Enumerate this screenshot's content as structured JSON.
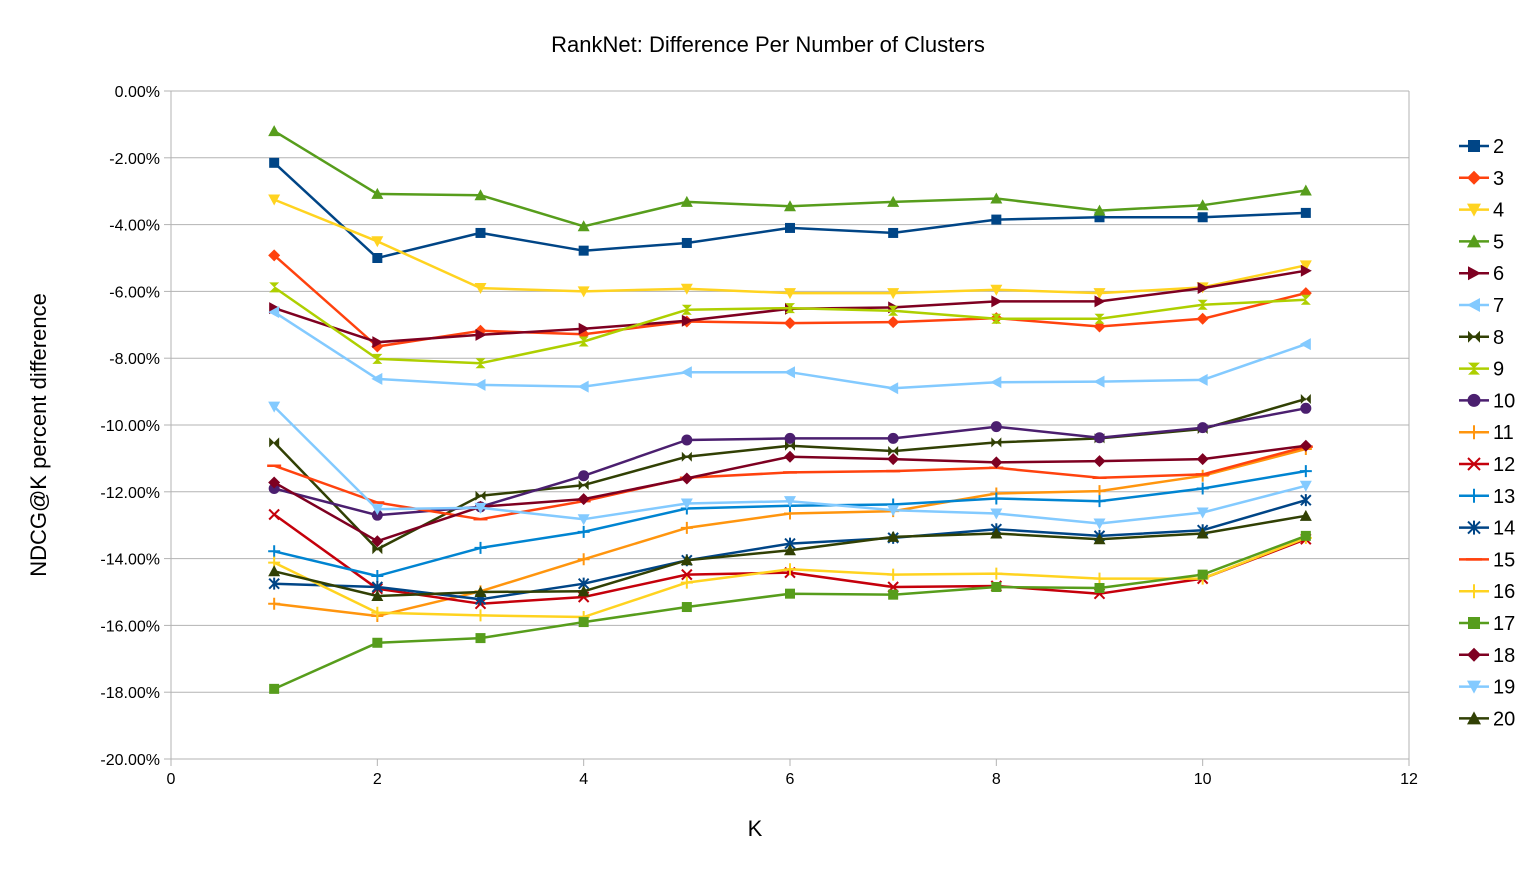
{
  "chart_data": {
    "type": "line",
    "title": "RankNet: Difference Per Number of Clusters",
    "xlabel": "K",
    "ylabel": "NDCG@K percent difference",
    "xlim": [
      0,
      12
    ],
    "ylim": [
      -20,
      0
    ],
    "x_ticks": [
      "0",
      "2",
      "4",
      "6",
      "8",
      "10",
      "12"
    ],
    "y_ticks": [
      "0.00%",
      "-2.00%",
      "-4.00%",
      "-6.00%",
      "-8.00%",
      "-10.00%",
      "-12.00%",
      "-14.00%",
      "-16.00%",
      "-18.00%",
      "-20.00%"
    ],
    "grid": "horizontal",
    "legend_position": "right",
    "x": [
      1,
      2,
      3,
      4,
      5,
      6,
      7,
      8,
      9,
      10,
      11
    ],
    "series": [
      {
        "name": "2",
        "color": "#004586",
        "marker": "square",
        "values": [
          -2.15,
          -5.0,
          -4.25,
          -4.78,
          -4.55,
          -4.1,
          -4.25,
          -3.85,
          -3.78,
          -3.78,
          -3.65
        ]
      },
      {
        "name": "3",
        "color": "#ff420e",
        "marker": "diamond",
        "values": [
          -4.92,
          -7.65,
          -7.18,
          -7.28,
          -6.9,
          -6.95,
          -6.92,
          -6.8,
          -7.05,
          -6.82,
          -6.05
        ]
      },
      {
        "name": "4",
        "color": "#ffd320",
        "marker": "triangle-down",
        "values": [
          -3.25,
          -4.5,
          -5.9,
          -6.0,
          -5.92,
          -6.05,
          -6.05,
          -5.95,
          -6.05,
          -5.88,
          -5.22
        ]
      },
      {
        "name": "5",
        "color": "#579d1c",
        "marker": "triangle-up",
        "values": [
          -1.2,
          -3.08,
          -3.12,
          -4.05,
          -3.32,
          -3.45,
          -3.32,
          -3.22,
          -3.58,
          -3.42,
          -2.98
        ]
      },
      {
        "name": "6",
        "color": "#7e0021",
        "marker": "triangle-right",
        "values": [
          -6.5,
          -7.52,
          -7.3,
          -7.12,
          -6.88,
          -6.52,
          -6.48,
          -6.3,
          -6.3,
          -5.9,
          -5.38
        ]
      },
      {
        "name": "7",
        "color": "#83caff",
        "marker": "triangle-left",
        "values": [
          -6.62,
          -8.62,
          -8.8,
          -8.85,
          -8.42,
          -8.42,
          -8.9,
          -8.72,
          -8.7,
          -8.65,
          -7.58
        ]
      },
      {
        "name": "8",
        "color": "#314004",
        "marker": "bowtie",
        "values": [
          -10.52,
          -13.72,
          -12.12,
          -11.8,
          -10.95,
          -10.62,
          -10.78,
          -10.52,
          -10.4,
          -10.12,
          -9.22
        ]
      },
      {
        "name": "9",
        "color": "#aecf00",
        "marker": "hourglass",
        "values": [
          -5.88,
          -8.02,
          -8.15,
          -7.5,
          -6.55,
          -6.5,
          -6.58,
          -6.82,
          -6.82,
          -6.4,
          -6.25
        ]
      },
      {
        "name": "10",
        "color": "#4b1f6f",
        "marker": "circle",
        "values": [
          -11.9,
          -12.7,
          -12.45,
          -11.52,
          -10.45,
          -10.4,
          -10.4,
          -10.05,
          -10.38,
          -10.08,
          -9.5
        ]
      },
      {
        "name": "11",
        "color": "#ff950e",
        "marker": "plus",
        "values": [
          -15.35,
          -15.72,
          -14.98,
          -14.02,
          -13.08,
          -12.65,
          -12.58,
          -12.05,
          -11.98,
          -11.52,
          -10.72
        ]
      },
      {
        "name": "12",
        "color": "#c5000b",
        "marker": "x",
        "values": [
          -12.68,
          -14.9,
          -15.35,
          -15.15,
          -14.48,
          -14.42,
          -14.85,
          -14.82,
          -15.05,
          -14.6,
          -13.42
        ]
      },
      {
        "name": "13",
        "color": "#0084d1",
        "marker": "plus",
        "values": [
          -13.78,
          -14.52,
          -13.68,
          -13.2,
          -12.5,
          -12.42,
          -12.38,
          -12.2,
          -12.28,
          -11.9,
          -11.38
        ]
      },
      {
        "name": "14",
        "color": "#004586",
        "marker": "asterisk",
        "values": [
          -14.75,
          -14.85,
          -15.22,
          -14.75,
          -14.05,
          -13.55,
          -13.38,
          -13.12,
          -13.32,
          -13.15,
          -12.25
        ]
      },
      {
        "name": "15",
        "color": "#ff420e",
        "marker": "dash",
        "values": [
          -11.22,
          -12.32,
          -12.82,
          -12.28,
          -11.58,
          -11.42,
          -11.38,
          -11.28,
          -11.58,
          -11.48,
          -10.65
        ]
      },
      {
        "name": "16",
        "color": "#ffd320",
        "marker": "plus",
        "values": [
          -14.12,
          -15.62,
          -15.7,
          -15.75,
          -14.72,
          -14.32,
          -14.48,
          -14.45,
          -14.6,
          -14.6,
          -13.38
        ]
      },
      {
        "name": "17",
        "color": "#579d1c",
        "marker": "square",
        "values": [
          -17.9,
          -16.52,
          -16.38,
          -15.9,
          -15.45,
          -15.05,
          -15.08,
          -14.85,
          -14.88,
          -14.48,
          -13.32
        ]
      },
      {
        "name": "18",
        "color": "#7e0021",
        "marker": "diamond",
        "values": [
          -11.72,
          -13.48,
          -12.45,
          -12.22,
          -11.6,
          -10.95,
          -11.02,
          -11.12,
          -11.08,
          -11.02,
          -10.62
        ]
      },
      {
        "name": "19",
        "color": "#83caff",
        "marker": "triangle-down",
        "values": [
          -9.45,
          -12.52,
          -12.48,
          -12.82,
          -12.35,
          -12.28,
          -12.55,
          -12.65,
          -12.95,
          -12.62,
          -11.82
        ]
      },
      {
        "name": "20",
        "color": "#314004",
        "marker": "triangle-up",
        "values": [
          -14.38,
          -15.12,
          -15.0,
          -14.98,
          -14.05,
          -13.75,
          -13.35,
          -13.25,
          -13.42,
          -13.25,
          -12.72
        ]
      }
    ]
  }
}
